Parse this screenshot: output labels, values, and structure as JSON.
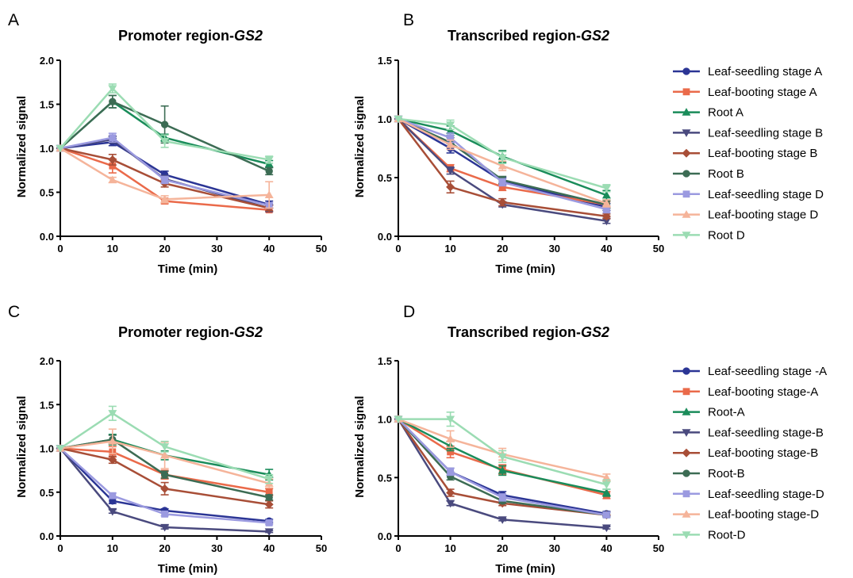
{
  "chart_data": [
    {
      "panel": "A",
      "type": "line",
      "title_main": "Promoter region-",
      "title_gene": "GS2",
      "xlabel": "Time (min)",
      "ylabel": "Normalized signal",
      "xlim": [
        0,
        50
      ],
      "ylim": [
        0,
        2.0
      ],
      "xticks": [
        "0",
        "10",
        "20",
        "30",
        "40",
        "50"
      ],
      "yticks": [
        "0.0",
        "0.5",
        "1.0",
        "1.5",
        "2.0"
      ],
      "x": [
        0,
        10,
        20,
        40
      ],
      "legend": false,
      "series": [
        {
          "color": "#2b3595",
          "marker": "circle",
          "values": [
            1.0,
            1.07,
            0.7,
            0.36
          ],
          "errors": [
            0,
            0.04,
            0.04,
            0.04
          ]
        },
        {
          "color": "#ea6a4a",
          "marker": "square",
          "values": [
            1.0,
            0.8,
            0.4,
            0.3
          ],
          "errors": [
            0,
            0.08,
            0.03,
            0.02
          ]
        },
        {
          "color": "#1a8c5a",
          "marker": "triangle-up",
          "values": [
            1.0,
            1.53,
            1.12,
            0.82
          ],
          "errors": [
            0,
            0.07,
            0.04,
            0.04
          ]
        },
        {
          "color": "#4a4a7e",
          "marker": "triangle-down",
          "values": [
            1.0,
            1.1,
            0.65,
            0.32
          ],
          "errors": [
            0,
            0.04,
            0.04,
            0.04
          ]
        },
        {
          "color": "#a84e37",
          "marker": "diamond",
          "values": [
            1.0,
            0.87,
            0.6,
            0.32
          ],
          "errors": [
            0,
            0.06,
            0.04,
            0.03
          ]
        },
        {
          "color": "#3c6c54",
          "marker": "circle",
          "values": [
            1.0,
            1.53,
            1.27,
            0.74
          ],
          "errors": [
            0,
            0.07,
            0.21,
            0.04
          ]
        },
        {
          "color": "#9b9ae0",
          "marker": "square",
          "values": [
            1.0,
            1.12,
            0.64,
            0.35
          ],
          "errors": [
            0,
            0.05,
            0.04,
            0.03
          ]
        },
        {
          "color": "#f5b49a",
          "marker": "triangle-up",
          "values": [
            1.0,
            0.64,
            0.42,
            0.47
          ],
          "errors": [
            0,
            0.03,
            0.04,
            0.15
          ]
        },
        {
          "color": "#9bdcb3",
          "marker": "triangle-down",
          "values": [
            1.0,
            1.68,
            1.08,
            0.87
          ],
          "errors": [
            0,
            0.05,
            0.07,
            0.04
          ]
        }
      ]
    },
    {
      "panel": "B",
      "type": "line",
      "title_main": "Transcribed region-",
      "title_gene": "GS2",
      "xlabel": "Time (min)",
      "ylabel": "Normalized signal",
      "xlim": [
        0,
        50
      ],
      "ylim": [
        0,
        1.5
      ],
      "xticks": [
        "0",
        "10",
        "20",
        "30",
        "40",
        "50"
      ],
      "yticks": [
        "0.0",
        "0.5",
        "1.0",
        "1.5"
      ],
      "x": [
        0,
        10,
        20,
        40
      ],
      "legend": true,
      "series": [
        {
          "name": "Leaf-seedling stage A",
          "color": "#2b3595",
          "marker": "circle",
          "values": [
            1.0,
            0.75,
            0.47,
            0.25
          ],
          "errors": [
            0,
            0.04,
            0.03,
            0.03
          ]
        },
        {
          "name": "Leaf-booting stage A",
          "color": "#ea6a4a",
          "marker": "square",
          "values": [
            1.0,
            0.58,
            0.42,
            0.27
          ],
          "errors": [
            0,
            0.03,
            0.03,
            0.03
          ]
        },
        {
          "name": "Root A",
          "color": "#1a8c5a",
          "marker": "triangle-up",
          "values": [
            1.0,
            0.9,
            0.68,
            0.35
          ],
          "errors": [
            0,
            0.04,
            0.05,
            0.04
          ]
        },
        {
          "name": "Leaf-seedling stage B",
          "color": "#4a4a7e",
          "marker": "triangle-down",
          "values": [
            1.0,
            0.56,
            0.27,
            0.13
          ],
          "errors": [
            0,
            0.03,
            0.02,
            0.02
          ]
        },
        {
          "name": "Leaf-booting stage B",
          "color": "#a84e37",
          "marker": "diamond",
          "values": [
            1.0,
            0.42,
            0.29,
            0.17
          ],
          "errors": [
            0,
            0.05,
            0.03,
            0.02
          ]
        },
        {
          "name": "Root B",
          "color": "#3c6c54",
          "marker": "circle",
          "values": [
            1.0,
            0.8,
            0.48,
            0.27
          ],
          "errors": [
            0,
            0.04,
            0.03,
            0.03
          ]
        },
        {
          "name": "Leaf-seedling stage D",
          "color": "#9b9ae0",
          "marker": "square",
          "values": [
            1.0,
            0.84,
            0.46,
            0.23
          ],
          "errors": [
            0,
            0.04,
            0.03,
            0.03
          ]
        },
        {
          "name": "Leaf-booting stage D",
          "color": "#f5b49a",
          "marker": "triangle-up",
          "values": [
            1.0,
            0.78,
            0.6,
            0.28
          ],
          "errors": [
            0,
            0.04,
            0.04,
            0.03
          ]
        },
        {
          "name": "Root D",
          "color": "#9bdcb3",
          "marker": "triangle-down",
          "values": [
            1.0,
            0.95,
            0.67,
            0.41
          ],
          "errors": [
            0,
            0.04,
            0.05,
            0.03
          ]
        }
      ]
    },
    {
      "panel": "C",
      "type": "line",
      "title_main": "Promoter region-",
      "title_gene": "GS2",
      "xlabel": "Time (min)",
      "ylabel": "Normalized signal",
      "xlim": [
        0,
        50
      ],
      "ylim": [
        0,
        2.0
      ],
      "xticks": [
        "0",
        "10",
        "20",
        "30",
        "40",
        "50"
      ],
      "yticks": [
        "0.0",
        "0.5",
        "1.0",
        "1.5",
        "2.0"
      ],
      "x": [
        0,
        10,
        20,
        40
      ],
      "legend": false,
      "series": [
        {
          "color": "#2b3595",
          "marker": "circle",
          "values": [
            1.0,
            0.4,
            0.29,
            0.17
          ],
          "errors": [
            0,
            0.03,
            0.02,
            0.02
          ]
        },
        {
          "color": "#ea6a4a",
          "marker": "square",
          "values": [
            1.0,
            0.96,
            0.7,
            0.5
          ],
          "errors": [
            0,
            0.06,
            0.05,
            0.04
          ]
        },
        {
          "color": "#1a8c5a",
          "marker": "triangle-up",
          "values": [
            1.0,
            1.1,
            0.92,
            0.7
          ],
          "errors": [
            0,
            0.06,
            0.05,
            0.06
          ]
        },
        {
          "color": "#4a4a7e",
          "marker": "triangle-down",
          "values": [
            1.0,
            0.28,
            0.1,
            0.05
          ],
          "errors": [
            0,
            0.02,
            0.02,
            0.01
          ]
        },
        {
          "color": "#a84e37",
          "marker": "diamond",
          "values": [
            1.0,
            0.87,
            0.54,
            0.36
          ],
          "errors": [
            0,
            0.04,
            0.07,
            0.04
          ]
        },
        {
          "color": "#3c6c54",
          "marker": "circle",
          "values": [
            1.0,
            1.1,
            0.7,
            0.44
          ],
          "errors": [
            0,
            0.05,
            0.04,
            0.03
          ]
        },
        {
          "color": "#9b9ae0",
          "marker": "square",
          "values": [
            1.0,
            0.46,
            0.25,
            0.15
          ],
          "errors": [
            0,
            0.03,
            0.02,
            0.02
          ]
        },
        {
          "color": "#f5b49a",
          "marker": "triangle-up",
          "values": [
            1.0,
            1.08,
            0.92,
            0.6
          ],
          "errors": [
            0,
            0.14,
            0.15,
            0.05
          ]
        },
        {
          "color": "#9bdcb3",
          "marker": "triangle-down",
          "values": [
            1.0,
            1.4,
            1.02,
            0.65
          ],
          "errors": [
            0,
            0.08,
            0.06,
            0.05
          ]
        }
      ]
    },
    {
      "panel": "D",
      "type": "line",
      "title_main": "Transcribed region-",
      "title_gene": "GS2",
      "xlabel": "Time (min)",
      "ylabel": "Normalized signal",
      "xlim": [
        0,
        50
      ],
      "ylim": [
        0,
        1.5
      ],
      "xticks": [
        "0",
        "10",
        "20",
        "30",
        "40",
        "50"
      ],
      "yticks": [
        "0.0",
        "0.5",
        "1.0",
        "1.5"
      ],
      "x": [
        0,
        10,
        20,
        40
      ],
      "legend": true,
      "series": [
        {
          "name": "Leaf-seedling stage -A",
          "color": "#2b3595",
          "marker": "circle",
          "values": [
            1.0,
            0.55,
            0.35,
            0.19
          ],
          "errors": [
            0,
            0.03,
            0.03,
            0.02
          ]
        },
        {
          "name": "Leaf-booting stage-A",
          "color": "#ea6a4a",
          "marker": "square",
          "values": [
            1.0,
            0.72,
            0.57,
            0.35
          ],
          "errors": [
            0,
            0.05,
            0.04,
            0.03
          ]
        },
        {
          "name": "Root-A",
          "color": "#1a8c5a",
          "marker": "triangle-up",
          "values": [
            1.0,
            0.77,
            0.56,
            0.37
          ],
          "errors": [
            0,
            0.04,
            0.04,
            0.03
          ]
        },
        {
          "name": "Leaf-seedling stage-B",
          "color": "#4a4a7e",
          "marker": "triangle-down",
          "values": [
            1.0,
            0.28,
            0.14,
            0.07
          ],
          "errors": [
            0,
            0.02,
            0.01,
            0.01
          ]
        },
        {
          "name": "Leaf-booting stage-B",
          "color": "#a84e37",
          "marker": "diamond",
          "values": [
            1.0,
            0.37,
            0.28,
            0.18
          ],
          "errors": [
            0,
            0.03,
            0.02,
            0.02
          ]
        },
        {
          "name": "Root-B",
          "color": "#3c6c54",
          "marker": "circle",
          "values": [
            1.0,
            0.51,
            0.3,
            0.18
          ],
          "errors": [
            0,
            0.03,
            0.02,
            0.02
          ]
        },
        {
          "name": "Leaf-seedling stage-D",
          "color": "#9b9ae0",
          "marker": "square",
          "values": [
            1.0,
            0.55,
            0.33,
            0.18
          ],
          "errors": [
            0,
            0.03,
            0.03,
            0.02
          ]
        },
        {
          "name": "Leaf-booting stage-D",
          "color": "#f5b49a",
          "marker": "triangle-up",
          "values": [
            1.0,
            0.83,
            0.7,
            0.5
          ],
          "errors": [
            0,
            0.07,
            0.05,
            0.03
          ]
        },
        {
          "name": "Root-D",
          "color": "#9bdcb3",
          "marker": "triangle-down",
          "values": [
            1.0,
            1.0,
            0.68,
            0.44
          ],
          "errors": [
            0,
            0.06,
            0.05,
            0.04
          ]
        }
      ]
    }
  ]
}
